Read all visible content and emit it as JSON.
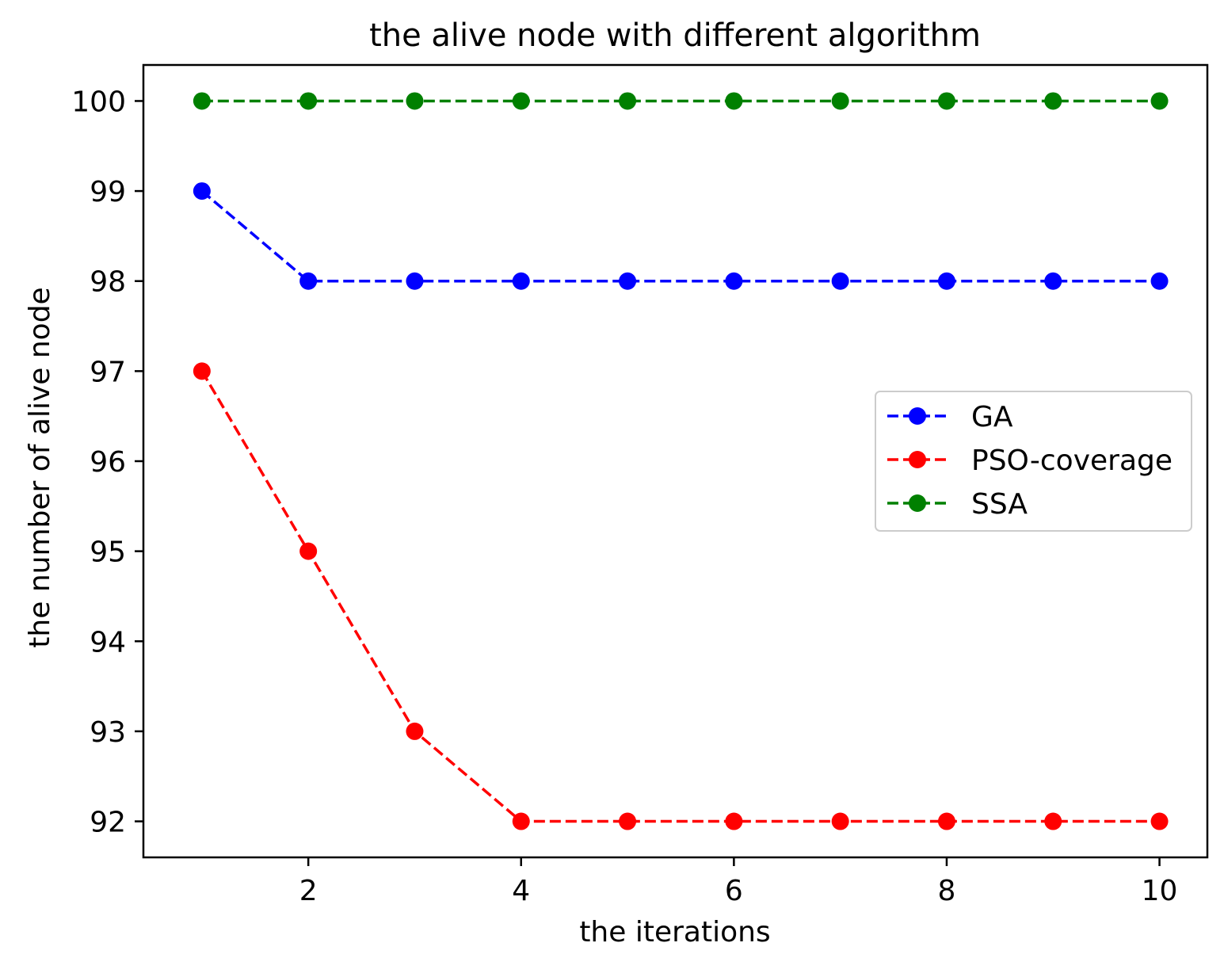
{
  "chart_data": {
    "type": "line",
    "title": "the alive node with different algorithm",
    "xlabel": "the iterations",
    "ylabel": "the number of alive node",
    "x": [
      1,
      2,
      3,
      4,
      5,
      6,
      7,
      8,
      9,
      10
    ],
    "xlim": [
      0.45,
      10.45
    ],
    "ylim": [
      91.6,
      100.4
    ],
    "xticks": [
      2,
      4,
      6,
      8,
      10
    ],
    "yticks": [
      92,
      93,
      94,
      95,
      96,
      97,
      98,
      99,
      100
    ],
    "grid": false,
    "legend_position": "center-right",
    "series": [
      {
        "name": "GA",
        "color": "#0000ff",
        "values": [
          99,
          98,
          98,
          98,
          98,
          98,
          98,
          98,
          98,
          98
        ]
      },
      {
        "name": "PSO-coverage",
        "color": "#ff0000",
        "values": [
          97,
          95,
          93,
          92,
          92,
          92,
          92,
          92,
          92,
          92
        ]
      },
      {
        "name": "SSA",
        "color": "#008000",
        "values": [
          100,
          100,
          100,
          100,
          100,
          100,
          100,
          100,
          100,
          100
        ]
      }
    ]
  }
}
